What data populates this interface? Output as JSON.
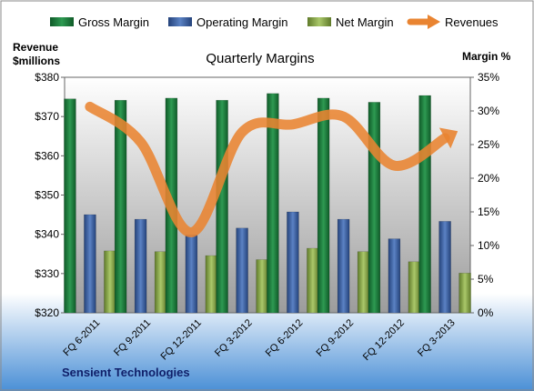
{
  "chart_data": {
    "type": "bar",
    "title": "Quarterly Margins",
    "company": "Sensient Technologies",
    "ylabel_left": [
      "Revenue",
      "$millions"
    ],
    "ylabel_right": "Margin %",
    "categories": [
      "FQ 6-2011",
      "FQ 9-2011",
      "FQ 12-2011",
      "FQ 3-2012",
      "FQ 6-2012",
      "FQ 9-2012",
      "FQ 12-2012",
      "FQ 3-2013"
    ],
    "ylim_left": [
      320,
      380
    ],
    "yticks_left": [
      "$320",
      "$330",
      "$340",
      "$350",
      "$360",
      "$370",
      "$380"
    ],
    "ylim_right": [
      0,
      35
    ],
    "yticks_right": [
      "0%",
      "5%",
      "10%",
      "15%",
      "20%",
      "25%",
      "30%",
      "35%"
    ],
    "legend_position": "top",
    "grid": false,
    "series": [
      {
        "name": "Gross Margin",
        "axis": "right",
        "color": "#1e7a3c",
        "values": [
          31.8,
          31.6,
          31.9,
          31.6,
          32.6,
          31.9,
          31.3,
          32.3
        ]
      },
      {
        "name": "Operating Margin",
        "axis": "right",
        "color": "#3a5fa0",
        "values": [
          14.6,
          13.9,
          11.6,
          12.6,
          15.0,
          13.9,
          11.0,
          13.6
        ]
      },
      {
        "name": "Net Margin",
        "axis": "right",
        "color": "#8ba849",
        "values": [
          9.2,
          9.1,
          8.5,
          7.9,
          9.6,
          9.1,
          7.6,
          5.9
        ]
      },
      {
        "name": "Revenues",
        "type": "line",
        "axis": "left",
        "color": "#e98431",
        "values": [
          372.5,
          363.5,
          340.5,
          366.0,
          368.0,
          370.0,
          357.5,
          364.5
        ]
      }
    ]
  }
}
